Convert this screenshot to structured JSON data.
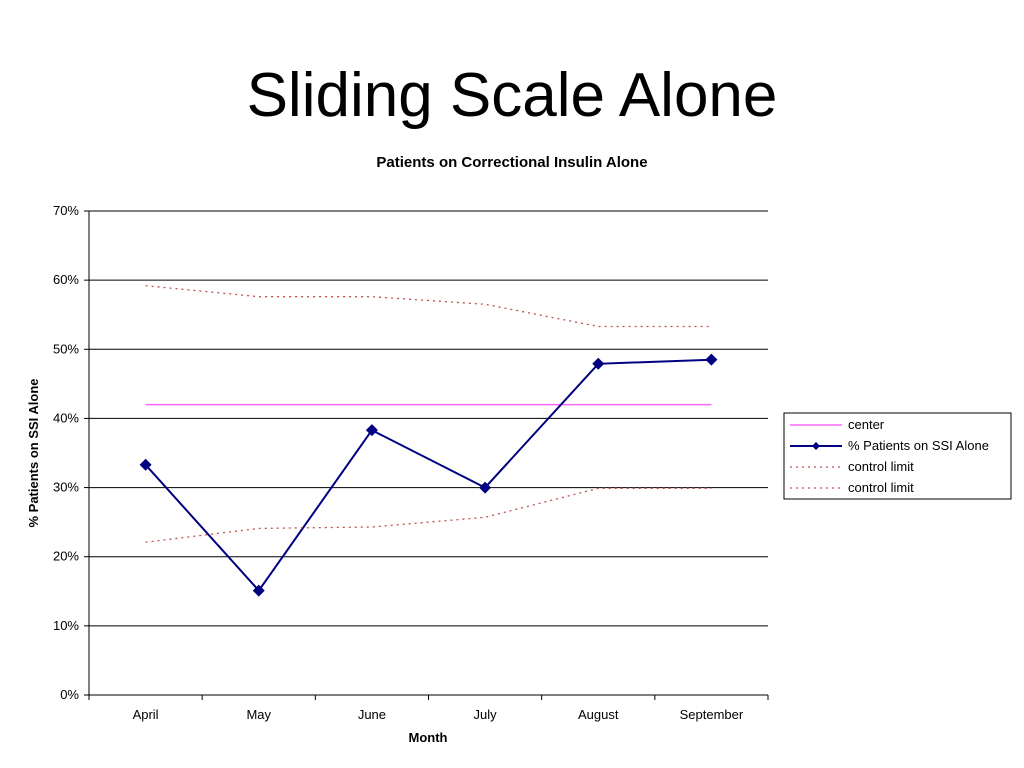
{
  "slide": {
    "title": "Sliding Scale Alone"
  },
  "chart_data": {
    "type": "line",
    "title": "Patients on Correctional Insulin Alone",
    "xlabel": "Month",
    "ylabel": "% Patients on SSI Alone",
    "categories": [
      "April",
      "May",
      "June",
      "July",
      "August",
      "September"
    ],
    "ylim": [
      0,
      70
    ],
    "y_ticks": [
      "0%",
      "10%",
      "20%",
      "30%",
      "40%",
      "50%",
      "60%",
      "70%"
    ],
    "grid": true,
    "legend_position": "right",
    "series": [
      {
        "name": "center",
        "values": [
          42,
          42,
          42,
          42,
          42,
          42
        ],
        "color": "#ff66ff",
        "style": "solid",
        "marker": "none"
      },
      {
        "name": "% Patients on SSI Alone",
        "values": [
          33.3,
          15.1,
          38.3,
          30.0,
          47.9,
          48.5
        ],
        "color": "#000080",
        "style": "solid",
        "marker": "diamond"
      },
      {
        "name": "control limit",
        "values": [
          59.2,
          57.6,
          57.6,
          56.5,
          53.3,
          53.3
        ],
        "color": "#c0504d",
        "style": "dotted",
        "marker": "none"
      },
      {
        "name": "control limit",
        "values": [
          22.1,
          24.1,
          24.3,
          25.7,
          29.9,
          29.9
        ],
        "color": "#c0504d",
        "style": "dotted",
        "marker": "none"
      }
    ]
  }
}
